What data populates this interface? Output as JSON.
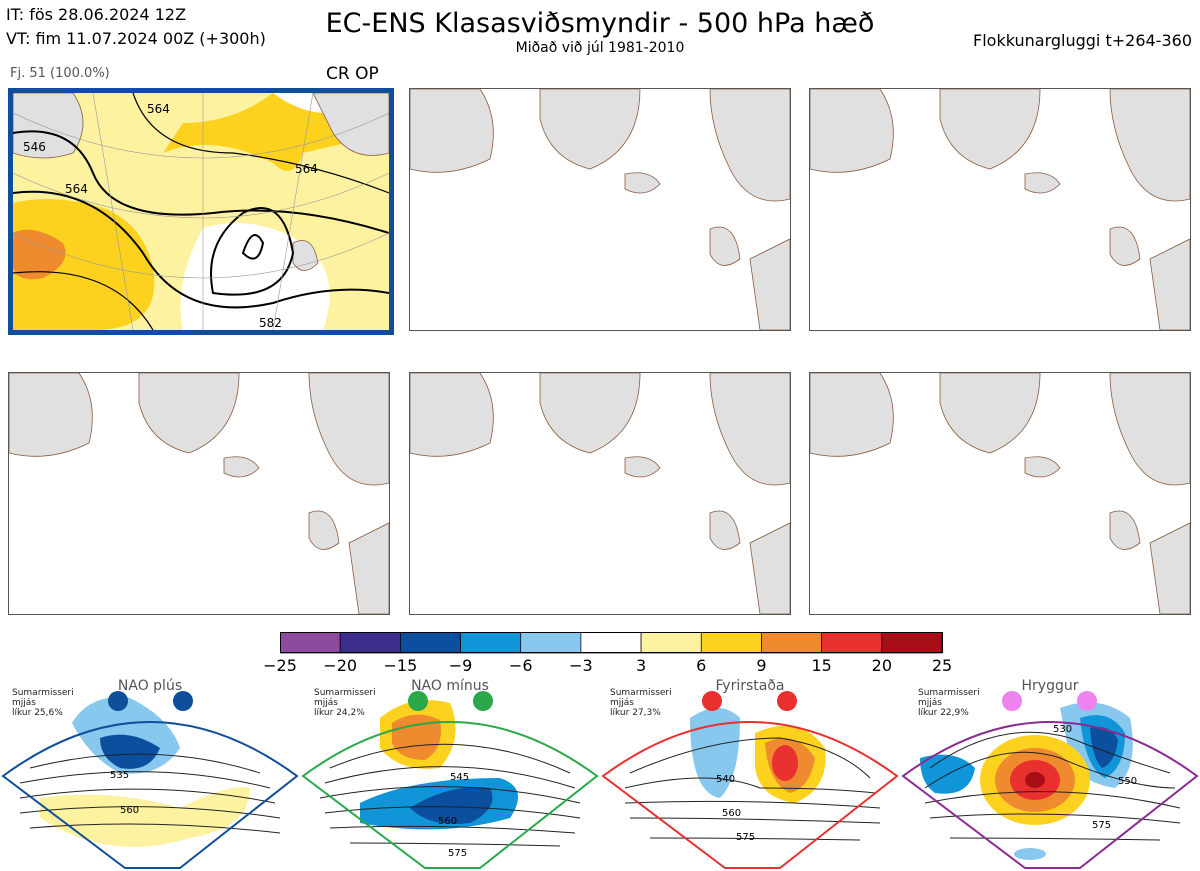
{
  "header": {
    "it_line": "IT: fös 28.06.2024 12Z",
    "vt_line": "VT: fim 11.07.2024 00Z  (+300h)",
    "title": "EC-ENS Klasasviðsmyndir - 500 hPa hæð",
    "subtitle": "Miðað við júl 1981-2010",
    "window_label": "Flokkunargluggi t+264-360"
  },
  "main_panel": {
    "members_label": "Fj. 51 (100.0%)",
    "regime_label": "CR OP",
    "contour_labels": [
      "546",
      "564",
      "564",
      "564",
      "582"
    ]
  },
  "colors": {
    "frame": "#0f4f99",
    "land": "#e0e0e0",
    "coast": "#8a5a3a",
    "nao_plus": "#0f4f99",
    "nao_minus": "#2aa84a",
    "blocking": "#e8302e",
    "ridge": "#8b2b8f",
    "ridge_dot": "#ee82ee"
  },
  "colorbar": {
    "ticks": [
      "−25",
      "−20",
      "−15",
      "−9",
      "−6",
      "−3",
      "3",
      "6",
      "9",
      "15",
      "20",
      "25"
    ],
    "colors": [
      "#8e4a9e",
      "#3d2d8c",
      "#0b4f9e",
      "#0f95d8",
      "#88c8ee",
      "#ffffff",
      "#fdf2a0",
      "#fdd21f",
      "#f08a2e",
      "#e8302e",
      "#a50f15"
    ]
  },
  "chart_data": {
    "type": "heatmap",
    "title": "EC-ENS Klasasviðsmyndir - 500 hPa hæð",
    "subtitle": "Miðað við júl 1981-2010",
    "colorbar_range": [
      -25,
      25
    ],
    "colorbar_bounds": [
      -25,
      -20,
      -15,
      -9,
      -6,
      -3,
      3,
      6,
      9,
      15,
      20,
      25
    ],
    "clusters": [
      {
        "label": "CR OP",
        "members": "Fj. 51 (100.0%)",
        "contours": [
          546,
          564,
          582
        ]
      }
    ]
  },
  "regimes": [
    {
      "name": "NAO plús",
      "note": [
        "Sumarmisseri",
        "mjjás",
        "líkur 25,6%"
      ],
      "contour_labels": [
        "535",
        "560"
      ]
    },
    {
      "name": "NAO mínus",
      "note": [
        "Sumarmisseri",
        "mjjás",
        "líkur 24,2%"
      ],
      "contour_labels": [
        "545",
        "560",
        "575"
      ]
    },
    {
      "name": "Fyrirstaða",
      "note": [
        "Sumarmisseri",
        "mjjás",
        "líkur 27,3%"
      ],
      "contour_labels": [
        "540",
        "560",
        "575"
      ]
    },
    {
      "name": "Hryggur",
      "note": [
        "Sumarmisseri",
        "mjjás",
        "líkur 22,9%"
      ],
      "contour_labels": [
        "530",
        "550",
        "575"
      ]
    }
  ]
}
